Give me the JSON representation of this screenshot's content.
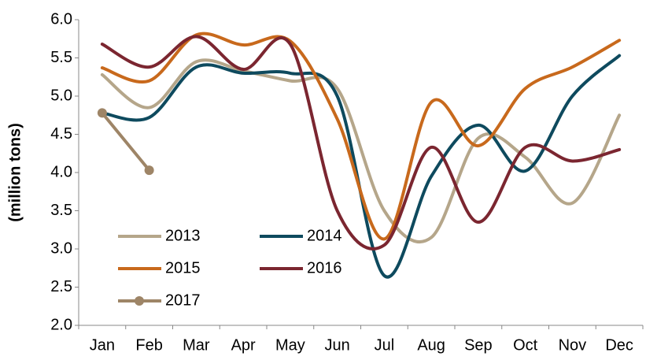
{
  "chart_data": {
    "type": "line",
    "y_label": "(million tons)",
    "categories": [
      "Jan",
      "Feb",
      "Mar",
      "Apr",
      "May",
      "Jun",
      "Jul",
      "Aug",
      "Sep",
      "Oct",
      "Nov",
      "Dec"
    ],
    "ylim": [
      2,
      6
    ],
    "yticks": [
      {
        "value": 2,
        "label": "2.0"
      },
      2.5,
      {
        "value": 3,
        "label": "3.0"
      },
      3.5,
      {
        "value": 4,
        "label": "4.0"
      },
      4.5,
      {
        "value": 5,
        "label": "5.0"
      },
      5.5,
      {
        "value": 6,
        "label": "6.0"
      }
    ],
    "grid": false,
    "legend": "lower left",
    "series": [
      {
        "name": "2013",
        "color": "#b5a68a",
        "values": [
          5.28,
          4.85,
          5.45,
          5.33,
          5.2,
          5.1,
          3.5,
          3.15,
          4.45,
          4.2,
          3.6,
          4.75
        ]
      },
      {
        "name": "2014",
        "color": "#0e4a5e",
        "values": [
          4.78,
          4.72,
          5.38,
          5.3,
          5.3,
          5.0,
          2.65,
          3.95,
          4.62,
          4.02,
          5.0,
          5.53
        ]
      },
      {
        "name": "2015",
        "color": "#c8691c",
        "values": [
          5.37,
          5.2,
          5.8,
          5.67,
          5.72,
          4.7,
          3.13,
          4.92,
          4.35,
          5.1,
          5.38,
          5.73
        ]
      },
      {
        "name": "2016",
        "color": "#7b2630",
        "values": [
          5.68,
          5.38,
          5.78,
          5.35,
          5.68,
          3.5,
          3.05,
          4.33,
          3.35,
          4.33,
          4.15,
          4.3
        ]
      },
      {
        "name": "2017",
        "color": "#9e8567",
        "marker": true,
        "values": [
          4.78,
          4.03,
          null,
          null,
          null,
          null,
          null,
          null,
          null,
          null,
          null,
          null
        ]
      }
    ]
  }
}
